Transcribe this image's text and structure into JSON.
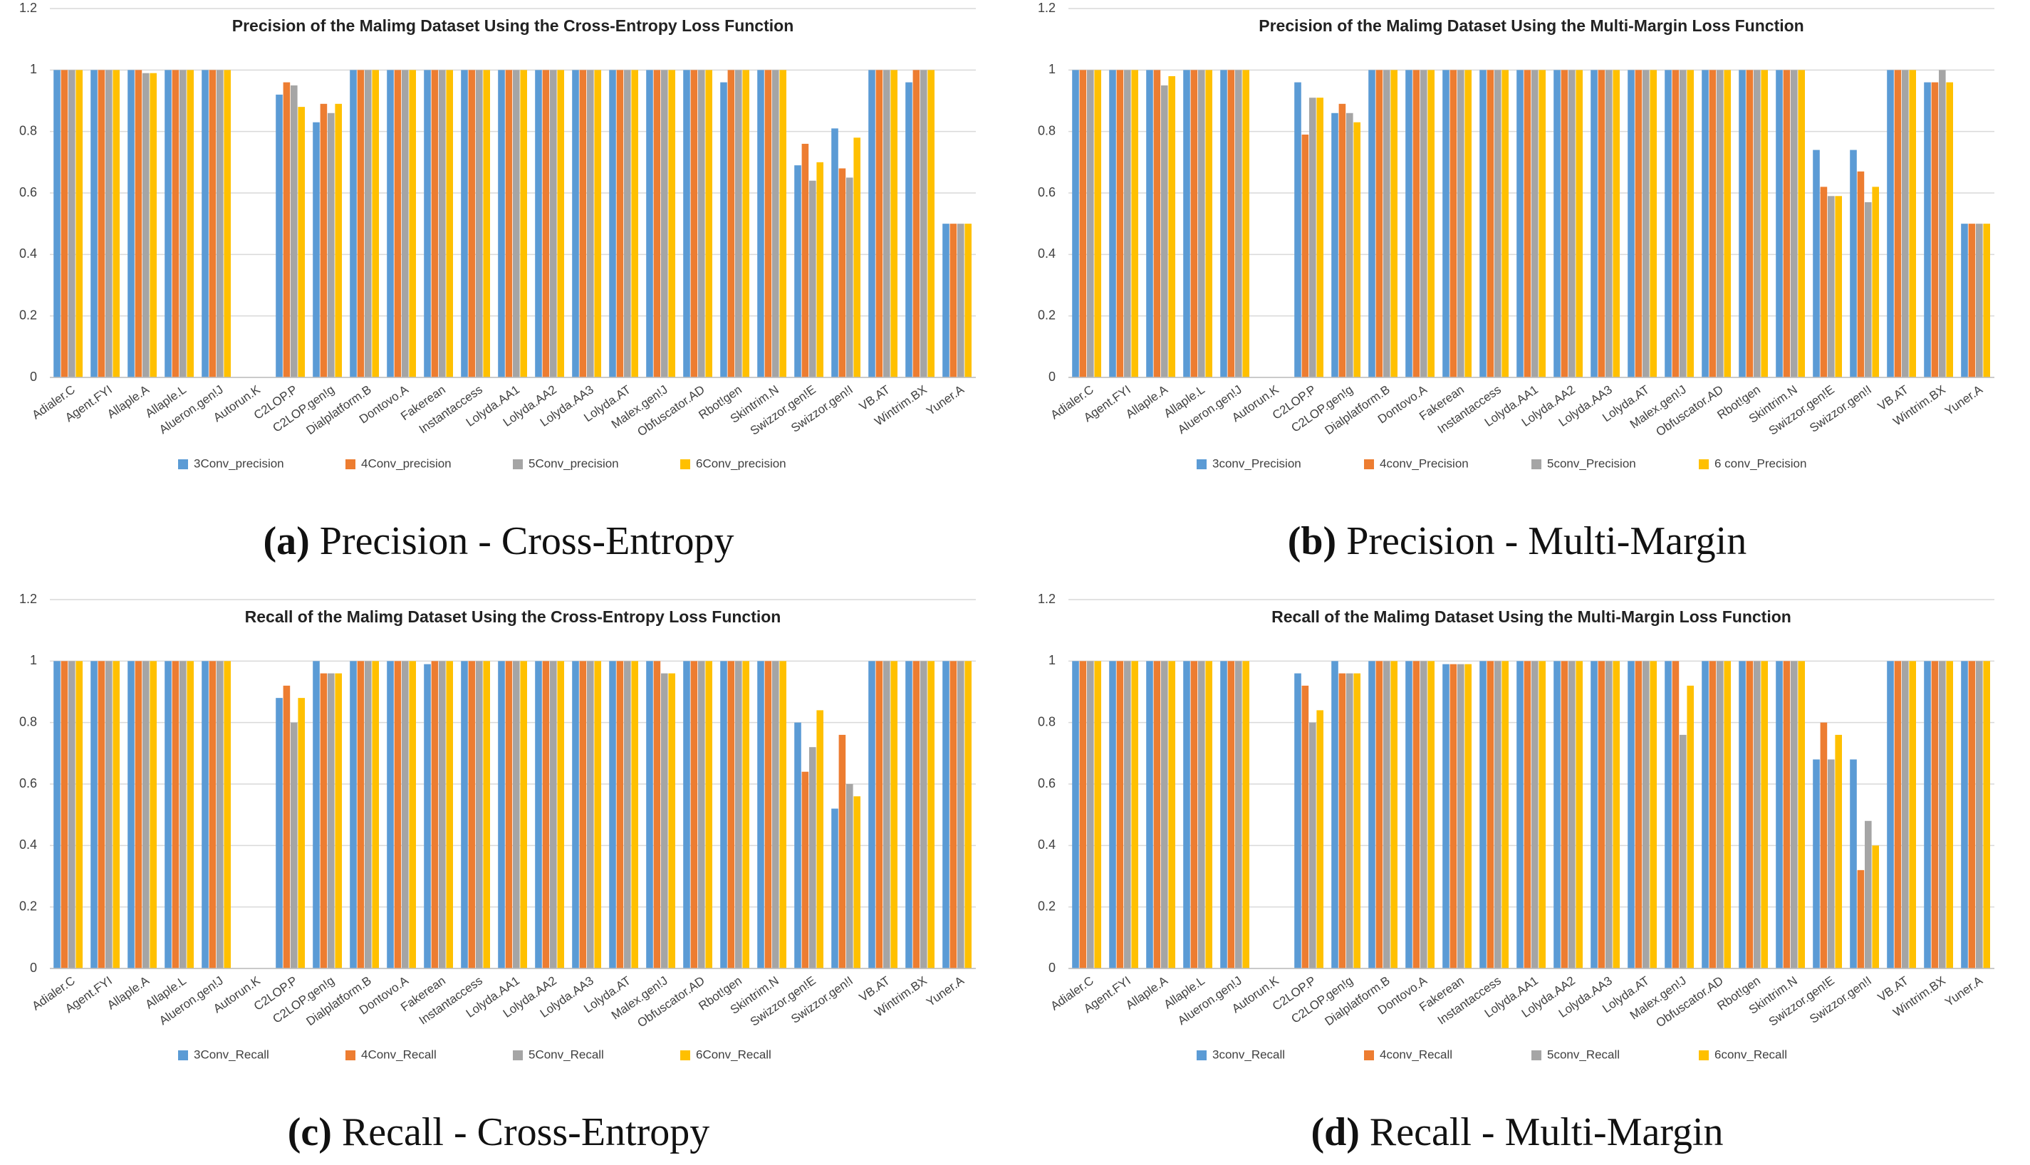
{
  "chart_data": [
    {
      "type": "bar",
      "title": "Precision of the Malimg Dataset Using the Cross-Entropy Loss Function",
      "caption_label": "(a)",
      "caption": "Precision - Cross-Entropy",
      "categories": [
        "Adialer.C",
        "Agent.FYI",
        "Allaple.A",
        "Allaple.L",
        "Alueron.gen!J",
        "Autorun.K",
        "C2LOP.P",
        "C2LOP.gen!g",
        "Dialplatform.B",
        "Dontovo.A",
        "Fakerean",
        "Instantaccess",
        "Lolyda.AA1",
        "Lolyda.AA2",
        "Lolyda.AA3",
        "Lolyda.AT",
        "Malex.gen!J",
        "Obfuscator.AD",
        "Rbot!gen",
        "Skintrim.N",
        "Swizzor.gen!E",
        "Swizzor.gen!I",
        "VB.AT",
        "Wintrim.BX",
        "Yuner.A"
      ],
      "series": [
        {
          "name": "3Conv_precision",
          "color": "#5b9bd5",
          "values": [
            1,
            1,
            1,
            1,
            1,
            0,
            0.92,
            0.83,
            1,
            1,
            1,
            1,
            1,
            1,
            1,
            1,
            1,
            1,
            0.96,
            1,
            0.69,
            0.81,
            1,
            0.96,
            0.5
          ]
        },
        {
          "name": "4Conv_precision",
          "color": "#ed7d31",
          "values": [
            1,
            1,
            1,
            1,
            1,
            0,
            0.96,
            0.89,
            1,
            1,
            1,
            1,
            1,
            1,
            1,
            1,
            1,
            1,
            1,
            1,
            0.76,
            0.68,
            1,
            1,
            0.5
          ]
        },
        {
          "name": "5Conv_precision",
          "color": "#a5a5a5",
          "values": [
            1,
            1,
            0.99,
            1,
            1,
            0,
            0.95,
            0.86,
            1,
            1,
            1,
            1,
            1,
            1,
            1,
            1,
            1,
            1,
            1,
            1,
            0.64,
            0.65,
            1,
            1,
            0.5
          ]
        },
        {
          "name": "6Conv_precision",
          "color": "#ffc000",
          "values": [
            1,
            1,
            0.99,
            1,
            1,
            0,
            0.88,
            0.89,
            1,
            1,
            1,
            1,
            1,
            1,
            1,
            1,
            1,
            1,
            1,
            1,
            0.7,
            0.78,
            1,
            1,
            0.5
          ]
        }
      ],
      "ylim": [
        0,
        1.2
      ],
      "yticks": [
        0,
        0.2,
        0.4,
        0.6,
        0.8,
        1,
        1.2
      ],
      "grid": true
    },
    {
      "type": "bar",
      "title": "Precision of the Malimg Dataset Using the Multi-Margin Loss Function",
      "caption_label": "(b)",
      "caption": "Precision - Multi-Margin",
      "categories": [
        "Adialer.C",
        "Agent.FYI",
        "Allaple.A",
        "Allaple.L",
        "Alueron.gen!J",
        "Autorun.K",
        "C2LOP.P",
        "C2LOP.gen!g",
        "Dialplatform.B",
        "Dontovo.A",
        "Fakerean",
        "Instantaccess",
        "Lolyda.AA1",
        "Lolyda.AA2",
        "Lolyda.AA3",
        "Lolyda.AT",
        "Malex.gen!J",
        "Obfuscator.AD",
        "Rbot!gen",
        "Skintrim.N",
        "Swizzor.gen!E",
        "Swizzor.gen!I",
        "VB.AT",
        "Wintrim.BX",
        "Yuner.A"
      ],
      "series": [
        {
          "name": "3conv_Precision",
          "color": "#5b9bd5",
          "values": [
            1,
            1,
            1,
            1,
            1,
            0,
            0.96,
            0.86,
            1,
            1,
            1,
            1,
            1,
            1,
            1,
            1,
            1,
            1,
            1,
            1,
            0.74,
            0.74,
            1,
            0.96,
            0.5
          ]
        },
        {
          "name": "4conv_Precision",
          "color": "#ed7d31",
          "values": [
            1,
            1,
            1,
            1,
            1,
            0,
            0.79,
            0.89,
            1,
            1,
            1,
            1,
            1,
            1,
            1,
            1,
            1,
            1,
            1,
            1,
            0.62,
            0.67,
            1,
            0.96,
            0.5
          ]
        },
        {
          "name": "5conv_Precision",
          "color": "#a5a5a5",
          "values": [
            1,
            1,
            0.95,
            1,
            1,
            0,
            0.91,
            0.86,
            1,
            1,
            1,
            1,
            1,
            1,
            1,
            1,
            1,
            1,
            1,
            1,
            0.59,
            0.57,
            1,
            1,
            0.5
          ]
        },
        {
          "name": "6 conv_Precision",
          "color": "#ffc000",
          "values": [
            1,
            1,
            0.98,
            1,
            1,
            0,
            0.91,
            0.83,
            1,
            1,
            1,
            1,
            1,
            1,
            1,
            1,
            1,
            1,
            1,
            1,
            0.59,
            0.62,
            1,
            0.96,
            0.5
          ]
        }
      ],
      "ylim": [
        0,
        1.2
      ],
      "yticks": [
        0,
        0.2,
        0.4,
        0.6,
        0.8,
        1,
        1.2
      ],
      "grid": true
    },
    {
      "type": "bar",
      "title": "Recall of the Malimg Dataset Using the Cross-Entropy Loss Function",
      "caption_label": "(c)",
      "caption": "Recall - Cross-Entropy",
      "categories": [
        "Adialer.C",
        "Agent.FYI",
        "Allaple.A",
        "Allaple.L",
        "Alueron.gen!J",
        "Autorun.K",
        "C2LOP.P",
        "C2LOP.gen!g",
        "Dialplatform.B",
        "Dontovo.A",
        "Fakerean",
        "Instantaccess",
        "Lolyda.AA1",
        "Lolyda.AA2",
        "Lolyda.AA3",
        "Lolyda.AT",
        "Malex.gen!J",
        "Obfuscator.AD",
        "Rbot!gen",
        "Skintrim.N",
        "Swizzor.gen!E",
        "Swizzor.gen!I",
        "VB.AT",
        "Wintrim.BX",
        "Yuner.A"
      ],
      "series": [
        {
          "name": "3Conv_Recall",
          "color": "#5b9bd5",
          "values": [
            1,
            1,
            1,
            1,
            1,
            0,
            0.88,
            1,
            1,
            1,
            0.99,
            1,
            1,
            1,
            1,
            1,
            1,
            1,
            1,
            1,
            0.8,
            0.52,
            1,
            1,
            1
          ]
        },
        {
          "name": "4Conv_Recall",
          "color": "#ed7d31",
          "values": [
            1,
            1,
            1,
            1,
            1,
            0,
            0.92,
            0.96,
            1,
            1,
            1,
            1,
            1,
            1,
            1,
            1,
            1,
            1,
            1,
            1,
            0.64,
            0.76,
            1,
            1,
            1
          ]
        },
        {
          "name": "5Conv_Recall",
          "color": "#a5a5a5",
          "values": [
            1,
            1,
            1,
            1,
            1,
            0,
            0.8,
            0.96,
            1,
            1,
            1,
            1,
            1,
            1,
            1,
            1,
            0.96,
            1,
            1,
            1,
            0.72,
            0.6,
            1,
            1,
            1
          ]
        },
        {
          "name": "6Conv_Recall",
          "color": "#ffc000",
          "values": [
            1,
            1,
            1,
            1,
            1,
            0,
            0.88,
            0.96,
            1,
            1,
            1,
            1,
            1,
            1,
            1,
            1,
            0.96,
            1,
            1,
            1,
            0.84,
            0.56,
            1,
            1,
            1
          ]
        }
      ],
      "ylim": [
        0,
        1.2
      ],
      "yticks": [
        0,
        0.2,
        0.4,
        0.6,
        0.8,
        1,
        1.2
      ],
      "grid": true
    },
    {
      "type": "bar",
      "title": "Recall of the Malimg Dataset Using the Multi-Margin Loss Function",
      "caption_label": "(d)",
      "caption": "Recall - Multi-Margin",
      "categories": [
        "Adialer.C",
        "Agent.FYI",
        "Allaple.A",
        "Allaple.L",
        "Alueron.gen!J",
        "Autorun.K",
        "C2LOP.P",
        "C2LOP.gen!g",
        "Dialplatform.B",
        "Dontovo.A",
        "Fakerean",
        "Instantaccess",
        "Lolyda.AA1",
        "Lolyda.AA2",
        "Lolyda.AA3",
        "Lolyda.AT",
        "Malex.gen!J",
        "Obfuscator.AD",
        "Rbot!gen",
        "Skintrim.N",
        "Swizzor.gen!E",
        "Swizzor.gen!I",
        "VB.AT",
        "Wintrim.BX",
        "Yuner.A"
      ],
      "series": [
        {
          "name": "3conv_Recall",
          "color": "#5b9bd5",
          "values": [
            1,
            1,
            1,
            1,
            1,
            0,
            0.96,
            1,
            1,
            1,
            0.99,
            1,
            1,
            1,
            1,
            1,
            1,
            1,
            1,
            1,
            0.68,
            0.68,
            1,
            1,
            1
          ]
        },
        {
          "name": "4conv_Recall",
          "color": "#ed7d31",
          "values": [
            1,
            1,
            1,
            1,
            1,
            0,
            0.92,
            0.96,
            1,
            1,
            0.99,
            1,
            1,
            1,
            1,
            1,
            1,
            1,
            1,
            1,
            0.8,
            0.32,
            1,
            1,
            1
          ]
        },
        {
          "name": "5conv_Recall",
          "color": "#a5a5a5",
          "values": [
            1,
            1,
            1,
            1,
            1,
            0,
            0.8,
            0.96,
            1,
            1,
            0.99,
            1,
            1,
            1,
            1,
            1,
            0.76,
            1,
            1,
            1,
            0.68,
            0.48,
            1,
            1,
            1
          ]
        },
        {
          "name": "6conv_Recall",
          "color": "#ffc000",
          "values": [
            1,
            1,
            1,
            1,
            1,
            0,
            0.84,
            0.96,
            1,
            1,
            0.99,
            1,
            1,
            1,
            1,
            1,
            0.92,
            1,
            1,
            1,
            0.76,
            0.4,
            1,
            1,
            1
          ]
        }
      ],
      "ylim": [
        0,
        1.2
      ],
      "yticks": [
        0,
        0.2,
        0.4,
        0.6,
        0.8,
        1,
        1.2
      ],
      "grid": true
    }
  ]
}
